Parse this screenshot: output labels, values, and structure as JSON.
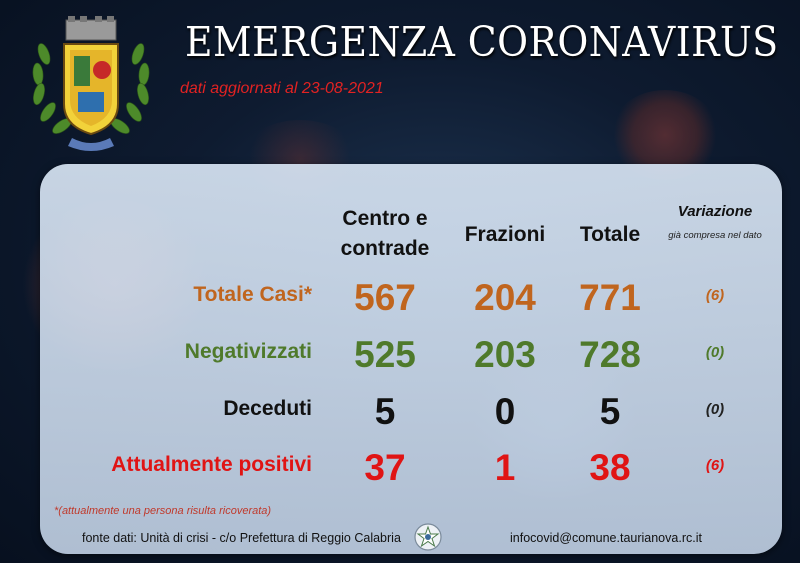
{
  "header": {
    "title": "EMERGENZA CORONAVIRUS",
    "updated": "dati aggiornati al 23-08-2021"
  },
  "columns": {
    "centro": "Centro e contrade",
    "frazioni": "Frazioni",
    "totale": "Totale",
    "variazione": "Variazione",
    "variazione_note": "già compresa nel dato"
  },
  "rows": [
    {
      "label": "Totale Casi*",
      "centro": "567",
      "frazioni": "204",
      "totale": "771",
      "variazione": "(6)",
      "color": "#c0651e"
    },
    {
      "label": "Negativizzati",
      "centro": "525",
      "frazioni": "203",
      "totale": "728",
      "variazione": "(0)",
      "color": "#4f7a2b"
    },
    {
      "label": "Deceduti",
      "centro": "5",
      "frazioni": "0",
      "totale": "5",
      "variazione": "(0)",
      "color": "#111111"
    },
    {
      "label": "Attualmente positivi",
      "centro": "37",
      "frazioni": "1",
      "totale": "38",
      "variazione": "(6)",
      "color": "#e01414"
    }
  ],
  "footer": {
    "note": "*(attualmente una persona risulta ricoverata)",
    "source": "fonte dati: Unità di crisi - c/o Prefettura di Reggio Calabria",
    "email": "infocovid@comune.taurianova.rc.it"
  },
  "icons": {
    "crest": "municipal-crest-icon",
    "emblem": "italian-republic-emblem-icon"
  }
}
